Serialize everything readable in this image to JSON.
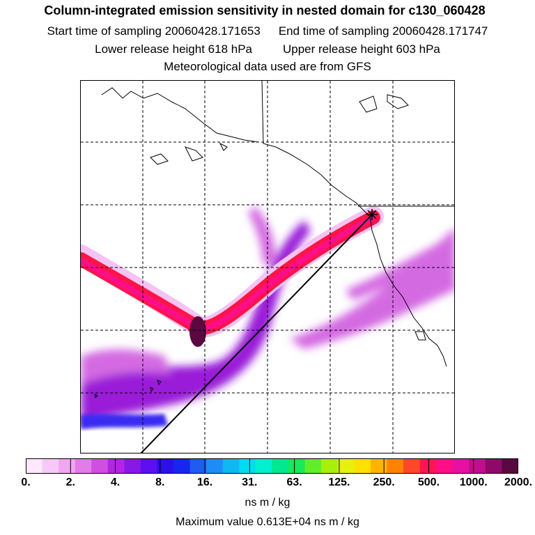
{
  "header": {
    "title": "Column-integrated emission sensitivity in nested domain for c130_060428",
    "start_label": "Start time of sampling 20060428.171653",
    "end_label": "End time of sampling 20060428.171747",
    "lower_label": "Lower release height  618 hPa",
    "upper_label": "Upper release height  603 hPa",
    "met_label": "Meteorological data used are from GFS"
  },
  "colorbar": {
    "colors": [
      "#fde8fd",
      "#f8c9f8",
      "#f0a6f0",
      "#e27ce8",
      "#d04ee0",
      "#b424e4",
      "#8818e6",
      "#5c0ff0",
      "#2b10ea",
      "#1626f0",
      "#1e5cf2",
      "#1e8cf6",
      "#10b8f2",
      "#00dcf0",
      "#00f0d0",
      "#00e890",
      "#18e85a",
      "#60ee2a",
      "#a8f00c",
      "#e8f010",
      "#ffe000",
      "#ffb400",
      "#ff8200",
      "#ff4828",
      "#ff1454",
      "#ff0e88",
      "#e810a0",
      "#c00e8c",
      "#8e0a68",
      "#5a0840"
    ],
    "tick_labels": [
      "0.",
      "2.",
      "4.",
      "8.",
      "16.",
      "31.",
      "63.",
      "125.",
      "250.",
      "500.",
      "1000.",
      "2000."
    ],
    "units": "ns m / kg"
  },
  "max_value": "Maximum value  0.613E+04 ns m / kg",
  "map_colors": {
    "coastline": "#000000",
    "grid": "#000000",
    "plume_outer": "#f3c3f3",
    "plume_mid": "#d46be2",
    "plume_inner": "#9a1ed8",
    "band_blue": "#3a2cf0",
    "core_red": "#ff1446",
    "core_magenta": "#ff0e88",
    "core_dark": "#5a0840"
  },
  "map_features": {
    "release_marker": "asterisk-release-point",
    "trajectory_line": "straight-line-to-southwest"
  }
}
